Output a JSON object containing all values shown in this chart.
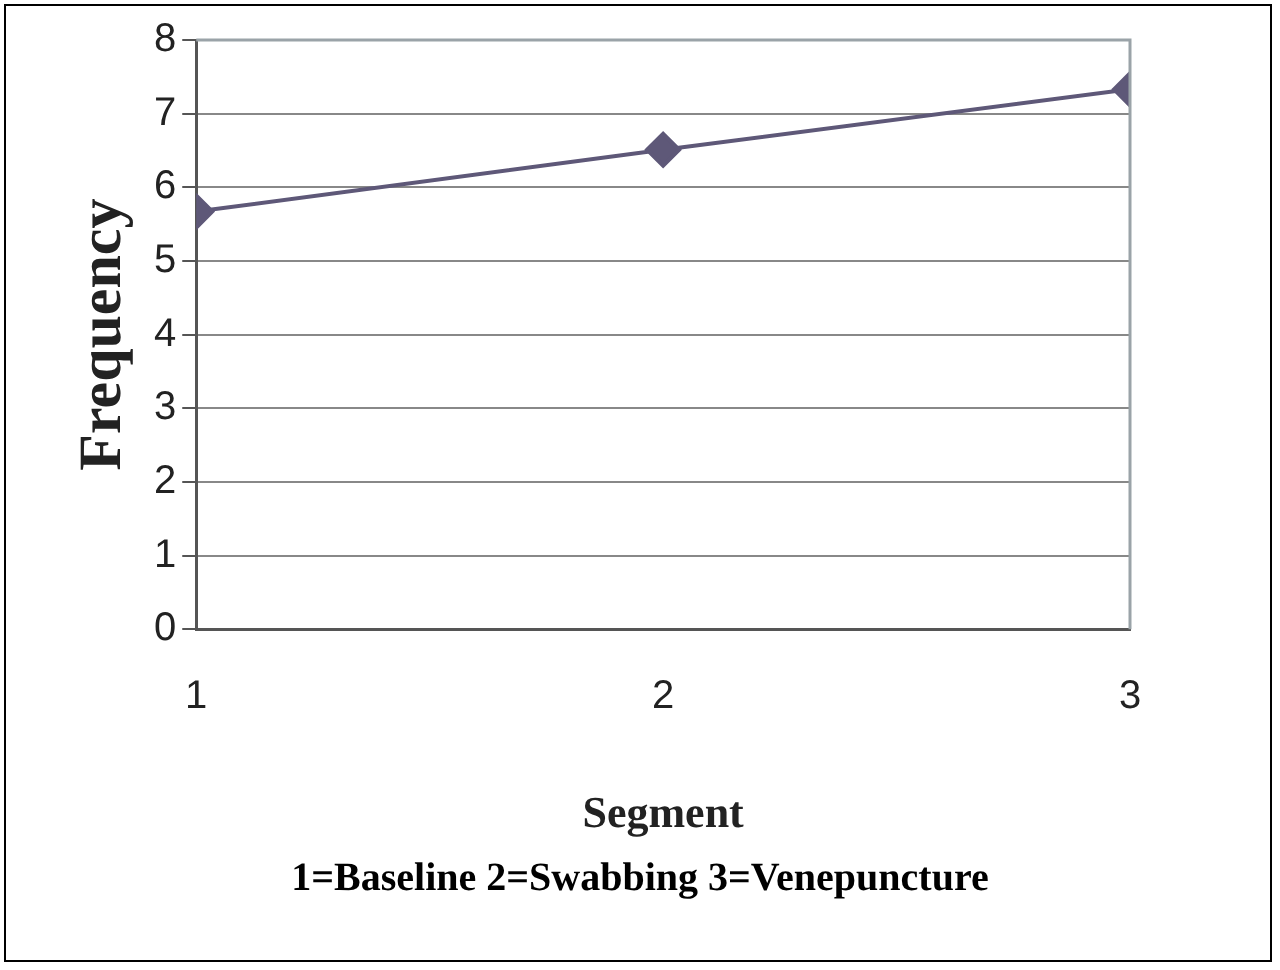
{
  "chart_data": {
    "type": "line",
    "xlabel": "Segment",
    "ylabel": "Frequency",
    "annotations": [
      "1=Baseline 2=Swabbing 3=Venepuncture"
    ],
    "x": [
      1,
      2,
      3
    ],
    "series": [
      {
        "color": "#5e5878",
        "values": [
          5.67,
          6.51,
          7.33
        ]
      }
    ],
    "xlim": [
      1,
      3
    ],
    "xticks": [
      1,
      2,
      3
    ],
    "ylim": [
      0,
      8
    ],
    "yticks": [
      0,
      1,
      2,
      3,
      4,
      5,
      6,
      7,
      8
    ],
    "grid": "y",
    "legend": false,
    "marker": "diamond",
    "line_style": "solid"
  }
}
